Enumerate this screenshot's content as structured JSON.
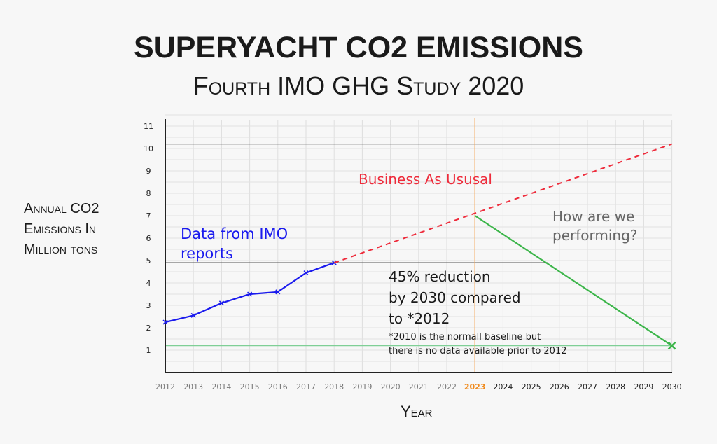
{
  "chart_data": {
    "type": "line",
    "title": "SUPERYACHT CO2 EMISSIONS",
    "subtitle": "Fourth IMO GHG Study 2020",
    "xlabel": "Year",
    "ylabel": "Annual CO2 Emissions In Million tons",
    "xlim": [
      2012,
      2030
    ],
    "ylim": [
      0,
      11
    ],
    "grid": true,
    "x_ticks": [
      2012,
      2013,
      2014,
      2015,
      2016,
      2017,
      2018,
      2019,
      2020,
      2021,
      2022,
      2023,
      2024,
      2025,
      2026,
      2027,
      2028,
      2029,
      2030
    ],
    "y_ticks": [
      1,
      2,
      3,
      4,
      5,
      6,
      7,
      8,
      9,
      10,
      11
    ],
    "highlight_year": 2023,
    "series": [
      {
        "name": "Data from IMO reports",
        "style": "solid",
        "marker": "x",
        "color": "#1a1aee",
        "x": [
          2012,
          2013,
          2014,
          2015,
          2016,
          2017,
          2018
        ],
        "y": [
          2.25,
          2.55,
          3.1,
          3.5,
          3.6,
          4.45,
          4.9
        ]
      },
      {
        "name": "Business As Ususal",
        "style": "dashed",
        "color": "#ee2b3b",
        "x": [
          2018,
          2030
        ],
        "y": [
          4.9,
          10.2
        ]
      },
      {
        "style": "solid",
        "color": "#3cb54a",
        "end_marker": "x",
        "x": [
          2023,
          2030
        ],
        "y": [
          7.0,
          1.2
        ]
      }
    ],
    "reference_lines": [
      {
        "orientation": "horizontal",
        "y": 10.2,
        "x": [
          2012,
          2030
        ],
        "color": "#555555"
      },
      {
        "orientation": "horizontal",
        "y": 4.9,
        "x": [
          2012,
          2025.6
        ],
        "color": "#555555"
      },
      {
        "orientation": "horizontal",
        "y": 1.2,
        "x": [
          2012,
          2030
        ],
        "color": "#7fcf96"
      },
      {
        "orientation": "vertical",
        "x": 2023,
        "color": "#f5a95a"
      }
    ],
    "annotations": {
      "imo": [
        "Data from IMO reports"
      ],
      "bau": "Business As Ususal",
      "performing": [
        "How are we",
        "performing?"
      ],
      "target": [
        "45% reduction",
        "by 2030 compared",
        "to *2012"
      ],
      "footnote": [
        "*2010 is the normall baseline but",
        "there is no data available prior to 2012"
      ]
    },
    "colors": {
      "imo": "#1a1aee",
      "bau": "#ee2b3b",
      "target": "#3cb54a",
      "highlight": "#f08a1c",
      "performing": "#666666"
    }
  }
}
